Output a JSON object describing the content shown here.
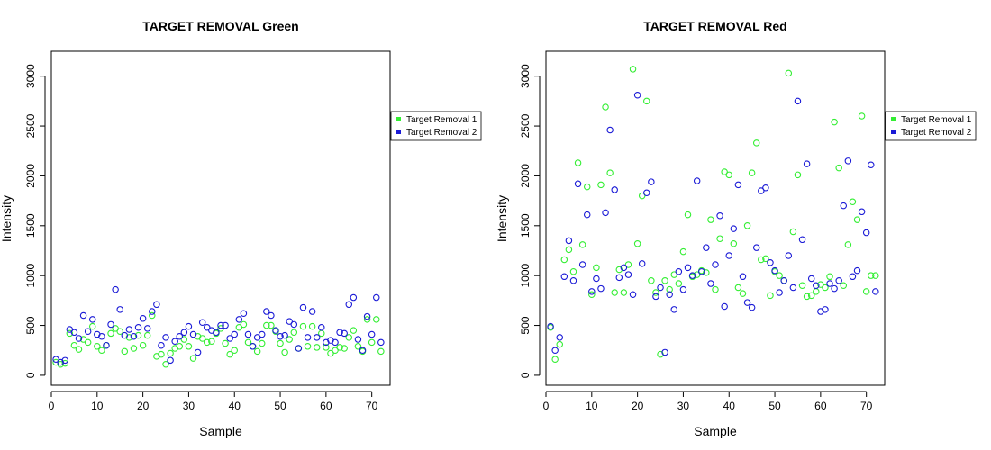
{
  "colors": {
    "series1": "#33ee33",
    "series2": "#1a1ad6"
  },
  "chart_data": [
    {
      "type": "scatter",
      "title": "TARGET REMOVAL Green",
      "xlabel": "Sample",
      "ylabel": "Intensity",
      "xlim": [
        0,
        74
      ],
      "ylim": [
        -100,
        3250
      ],
      "xticks": [
        0,
        10,
        20,
        30,
        40,
        50,
        60,
        70
      ],
      "yticks": [
        0,
        500,
        1000,
        1500,
        2000,
        2500,
        3000
      ],
      "grid": false,
      "legend_position": "right",
      "x": [
        1,
        2,
        3,
        4,
        5,
        6,
        7,
        8,
        9,
        10,
        11,
        12,
        13,
        14,
        15,
        16,
        17,
        18,
        19,
        20,
        21,
        22,
        23,
        24,
        25,
        26,
        27,
        28,
        29,
        30,
        31,
        32,
        33,
        34,
        35,
        36,
        37,
        38,
        39,
        40,
        41,
        42,
        43,
        44,
        45,
        46,
        47,
        48,
        49,
        50,
        51,
        52,
        53,
        54,
        55,
        56,
        57,
        58,
        59,
        60,
        61,
        62,
        63,
        64,
        65,
        66,
        67,
        68,
        69,
        70,
        71,
        72
      ],
      "series": [
        {
          "name": "Target Removal 1",
          "values": [
            130,
            110,
            120,
            420,
            300,
            260,
            360,
            330,
            490,
            290,
            250,
            300,
            420,
            470,
            440,
            240,
            380,
            270,
            400,
            300,
            400,
            600,
            190,
            210,
            110,
            220,
            270,
            290,
            360,
            290,
            170,
            390,
            370,
            330,
            340,
            420,
            470,
            320,
            210,
            250,
            480,
            510,
            330,
            290,
            240,
            320,
            500,
            500,
            440,
            320,
            230,
            360,
            430,
            270,
            490,
            290,
            490,
            280,
            420,
            280,
            220,
            250,
            280,
            270,
            380,
            450,
            290,
            240,
            560,
            330,
            560,
            240
          ]
        },
        {
          "name": "Target Removal 2",
          "values": [
            160,
            130,
            150,
            460,
            430,
            370,
            600,
            440,
            560,
            410,
            390,
            300,
            510,
            860,
            660,
            400,
            460,
            390,
            480,
            570,
            470,
            640,
            710,
            300,
            380,
            150,
            340,
            390,
            430,
            490,
            410,
            230,
            530,
            480,
            450,
            430,
            500,
            500,
            370,
            410,
            560,
            620,
            410,
            290,
            380,
            410,
            640,
            600,
            450,
            390,
            400,
            540,
            510,
            270,
            680,
            380,
            640,
            380,
            480,
            330,
            350,
            330,
            430,
            420,
            710,
            780,
            360,
            250,
            590,
            410,
            780,
            330
          ]
        }
      ]
    },
    {
      "type": "scatter",
      "title": "TARGET REMOVAL Red",
      "xlabel": "Sample",
      "ylabel": "Intensity",
      "xlim": [
        0,
        74
      ],
      "ylim": [
        -100,
        3250
      ],
      "xticks": [
        0,
        10,
        20,
        30,
        40,
        50,
        60,
        70
      ],
      "yticks": [
        0,
        500,
        1000,
        1500,
        2000,
        2500,
        3000
      ],
      "grid": false,
      "legend_position": "right",
      "x": [
        1,
        2,
        3,
        4,
        5,
        6,
        7,
        8,
        9,
        10,
        11,
        12,
        13,
        14,
        15,
        16,
        17,
        18,
        19,
        20,
        21,
        22,
        23,
        24,
        25,
        26,
        27,
        28,
        29,
        30,
        31,
        32,
        33,
        34,
        35,
        36,
        37,
        38,
        39,
        40,
        41,
        42,
        43,
        44,
        45,
        46,
        47,
        48,
        49,
        50,
        51,
        52,
        53,
        54,
        55,
        56,
        57,
        58,
        59,
        60,
        61,
        62,
        63,
        64,
        65,
        66,
        67,
        68,
        69,
        70,
        71,
        72
      ],
      "series": [
        {
          "name": "Target Removal 1",
          "values": [
            480,
            160,
            310,
            1160,
            1260,
            1040,
            2130,
            1310,
            1890,
            810,
            1080,
            1910,
            2690,
            2030,
            830,
            1060,
            830,
            1110,
            3070,
            1320,
            1800,
            2750,
            950,
            830,
            210,
            950,
            860,
            1010,
            920,
            1240,
            1610,
            990,
            1010,
            1050,
            1030,
            1560,
            860,
            1370,
            2040,
            2010,
            1320,
            880,
            820,
            1500,
            2030,
            2330,
            1160,
            1170,
            800,
            1040,
            1000,
            950,
            3030,
            1440,
            2010,
            900,
            790,
            800,
            840,
            910,
            880,
            990,
            2540,
            2080,
            900,
            1310,
            1740,
            1560,
            2600,
            840,
            1000,
            1000
          ]
        },
        {
          "name": "Target Removal 2",
          "values": [
            490,
            250,
            380,
            990,
            1350,
            950,
            1920,
            1110,
            1610,
            840,
            970,
            870,
            1630,
            2460,
            1860,
            980,
            1080,
            1010,
            810,
            2810,
            1120,
            1830,
            1940,
            790,
            880,
            230,
            810,
            660,
            1040,
            860,
            1080,
            1000,
            1950,
            1040,
            1280,
            920,
            1110,
            1600,
            690,
            1200,
            1470,
            1910,
            990,
            730,
            680,
            1280,
            1850,
            1880,
            1130,
            1050,
            830,
            950,
            1200,
            880,
            2750,
            1360,
            2120,
            970,
            900,
            640,
            660,
            920,
            870,
            950,
            1700,
            2150,
            990,
            1050,
            1640,
            1430,
            2110,
            840
          ]
        }
      ]
    }
  ]
}
